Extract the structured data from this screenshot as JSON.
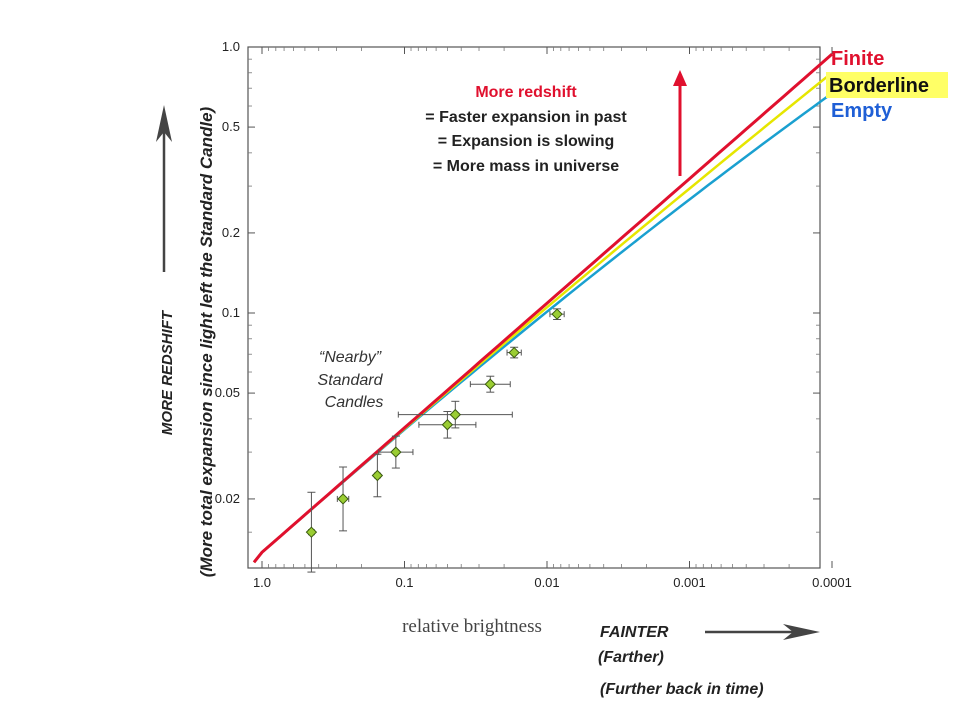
{
  "chart_data": {
    "type": "scatter",
    "xlabel": "relative brightness",
    "ylabel": "(More total expansion since light left the Standard Candle)",
    "x_scale": "log-reversed",
    "y_scale": "log",
    "xlim": [
      1.0,
      0.0001
    ],
    "ylim": [
      0.011,
      1.0
    ],
    "x_ticks": [
      "1.0",
      "0.1",
      "0.01",
      "0.001",
      "0.0001"
    ],
    "x_tick_values": [
      1.0,
      0.1,
      0.01,
      0.001,
      0.0001
    ],
    "y_ticks": [
      "1.0",
      "0.5",
      "0.2",
      "0.1",
      "0.05",
      "0.02"
    ],
    "y_tick_values": [
      1.0,
      0.5,
      0.2,
      0.1,
      0.05,
      0.02
    ],
    "grid": false,
    "points": [
      {
        "x": 0.45,
        "y": 0.015,
        "xerr": 0.02,
        "yerr": 0.15
      },
      {
        "x": 0.27,
        "y": 0.02,
        "xerr": 0.04,
        "yerr": 0.12
      },
      {
        "x": 0.155,
        "y": 0.0245,
        "xerr": 0.02,
        "yerr": 0.08
      },
      {
        "x": 0.115,
        "y": 0.03,
        "xerr": 0.12,
        "yerr": 0.06
      },
      {
        "x": 0.05,
        "y": 0.038,
        "xerr": 0.2,
        "yerr": 0.05
      },
      {
        "x": 0.044,
        "y": 0.0415,
        "xerr": 0.4,
        "yerr": 0.05
      },
      {
        "x": 0.025,
        "y": 0.054,
        "xerr": 0.14,
        "yerr": 0.03
      },
      {
        "x": 0.017,
        "y": 0.071,
        "xerr": 0.05,
        "yerr": 0.02
      },
      {
        "x": 0.0085,
        "y": 0.099,
        "xerr": 0.05,
        "yerr": 0.02
      }
    ],
    "series": [
      {
        "name": "Finite",
        "color": "#e0102e",
        "end_y": 0.94
      },
      {
        "name": "Borderline",
        "color": "#e6e600",
        "end_y": 0.8
      },
      {
        "name": "Empty",
        "color": "#1aa0d0",
        "end_y": 0.67
      }
    ],
    "annotations": {
      "box_lines": [
        "More redshift",
        "= Faster expansion in past",
        "= Expansion is slowing",
        "= More mass in universe"
      ],
      "nearby_lines": [
        "“Nearby”",
        "Standard",
        "Candles"
      ],
      "more_redshift": "MORE REDSHIFT",
      "fainter": "FAINTER",
      "farther": "(Farther)",
      "further_back": "(Further back in time)"
    },
    "colors": {
      "finite_label": "#e0102e",
      "borderline_bg": "#ffff66",
      "empty_label": "#1f5fd6",
      "red_arrow": "#e0102e",
      "point_fill": "#9acd32"
    }
  }
}
